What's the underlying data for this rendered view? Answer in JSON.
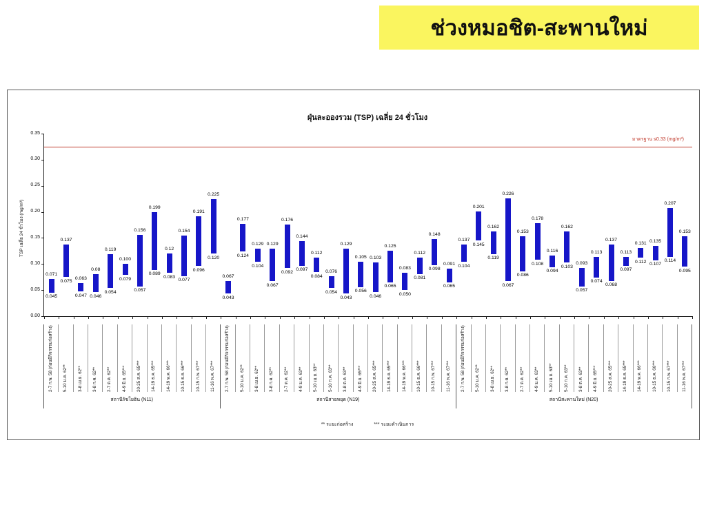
{
  "banner": {
    "text": "ช่วงหมอชิต-สะพานใหม่"
  },
  "colors": {
    "banner_bg": "#faf55f",
    "bar": "#1616c8",
    "standard_line": "#c0392b",
    "standard_label": "#c0392b"
  },
  "footnotes": {
    "construction": "** ระยะก่อสร้าง",
    "operation": "*** ระยะดำเนินการ"
  },
  "chart_data": {
    "type": "bar",
    "subtype": "floating-range-bars",
    "title": "ฝุ่นละอองรวม (TSP) เฉลี่ย 24 ชั่วโมง",
    "ylabel": "TSP เฉลี่ย 24 ชั่วโมง (mg/m³)",
    "ylim": [
      0,
      0.35
    ],
    "ytick_step": 0.05,
    "yticks": [
      "0.00",
      "0.05",
      "0.10",
      "0.15",
      "0.20",
      "0.25",
      "0.30",
      "0.35"
    ],
    "grid": false,
    "standard_line": {
      "value": 0.325,
      "label": "มาตรฐาน ≤0.33 (mg/m³)"
    },
    "groups": [
      {
        "name": "สถานีรัชโยธิน (N11)",
        "bars": [
          {
            "label": "2-7 ก.พ. 58 (ก่อนมีกิจกรรมก่อสร้าง)",
            "min": "0.045",
            "max": "0.071"
          },
          {
            "label": "5-10 ม.ค. 62**",
            "min": "0.075",
            "max": "0.137"
          },
          {
            "label": "3-8 เม.ย. 62**",
            "min": "0.047",
            "max": "0.063"
          },
          {
            "label": "3-8 ก.ค. 62**",
            "min": "0.046",
            "max": "0.08"
          },
          {
            "label": "2-7 ต.ค. 62**",
            "min": "0.054",
            "max": "0.119"
          },
          {
            "label": "4-9 มิ.ย. 65***",
            "min": "0.079",
            "max": "0.100"
          },
          {
            "label": "20-25 ส.ค. 65***",
            "min": "0.057",
            "max": "0.156"
          },
          {
            "label": "14-19 ธ.ค. 65***",
            "min": "0.089",
            "max": "0.199"
          },
          {
            "label": "14-19 พ.ค. 66***",
            "min": "0.083",
            "max": "0.12"
          },
          {
            "label": "10-15 ธ.ค. 66***",
            "min": "0.077",
            "max": "0.154"
          },
          {
            "label": "10-15 ก.พ. 67***",
            "min": "0.096",
            "max": "0.191"
          },
          {
            "label": "11-16 พ.ค. 67***",
            "min": "0.120",
            "max": "0.225"
          }
        ]
      },
      {
        "name": "สถานีสายหยุด (N19)",
        "bars": [
          {
            "label": "2-7 ก.พ. 58 (ก่อนมีกิจกรรมก่อสร้าง)",
            "min": "0.043",
            "max": "0.067"
          },
          {
            "label": "5-10 ม.ค. 62**",
            "min": "0.124",
            "max": "0.177"
          },
          {
            "label": "3-8 เม.ย. 62**",
            "min": "0.104",
            "max": "0.129"
          },
          {
            "label": "3-8 ก.ค. 62**",
            "min": "0.067",
            "max": "0.129"
          },
          {
            "label": "2-7 ต.ค. 62**",
            "min": "0.092",
            "max": "0.176"
          },
          {
            "label": "4-9 ม.ค. 63**",
            "min": "0.097",
            "max": "0.144"
          },
          {
            "label": "5-10 เม.ย. 63**",
            "min": "0.084",
            "max": "0.112"
          },
          {
            "label": "5-10 ก.ค. 63**",
            "min": "0.054",
            "max": "0.076"
          },
          {
            "label": "3-8 ต.ค. 63**",
            "min": "0.043",
            "max": "0.129"
          },
          {
            "label": "4-9 มิ.ย. 65***",
            "min": "0.056",
            "max": "0.105"
          },
          {
            "label": "20-25 ส.ค. 65***",
            "min": "0.046",
            "max": "0.103"
          },
          {
            "label": "14-19 ธ.ค. 65***",
            "min": "0.065",
            "max": "0.125"
          },
          {
            "label": "14-19 พ.ค. 66***",
            "min": "0.050",
            "max": "0.083"
          },
          {
            "label": "10-15 ธ.ค. 66***",
            "min": "0.081",
            "max": "0.112"
          },
          {
            "label": "10-15 ก.พ. 67***",
            "min": "0.098",
            "max": "0.148"
          },
          {
            "label": "11-16 พ.ค. 67***",
            "min": "0.065",
            "max": "0.091"
          }
        ]
      },
      {
        "name": "สถานีสะพานใหม่ (N20)",
        "bars": [
          {
            "label": "2-7 ก.พ. 58 (ก่อนมีกิจกรรมก่อสร้าง)",
            "min": "0.104",
            "max": "0.137"
          },
          {
            "label": "5-10 ม.ค. 62**",
            "min": "0.145",
            "max": "0.201"
          },
          {
            "label": "3-8 เม.ย. 62**",
            "min": "0.119",
            "max": "0.162"
          },
          {
            "label": "3-8 ก.ค. 62**",
            "min": "0.067",
            "max": "0.226"
          },
          {
            "label": "2-7 ต.ค. 62**",
            "min": "0.086",
            "max": "0.153"
          },
          {
            "label": "4-9 ม.ค. 63**",
            "min": "0.108",
            "max": "0.178"
          },
          {
            "label": "5-10 เม.ย. 63**",
            "min": "0.094",
            "max": "0.116"
          },
          {
            "label": "5-10 ก.ค. 63**",
            "min": "0.103",
            "max": "0.162"
          },
          {
            "label": "3-8 ต.ค. 63**",
            "min": "0.057",
            "max": "0.093"
          },
          {
            "label": "4-9 มิ.ย. 65***",
            "min": "0.074",
            "max": "0.113"
          },
          {
            "label": "20-25 ส.ค. 65***",
            "min": "0.068",
            "max": "0.137"
          },
          {
            "label": "14-19 ธ.ค. 65***",
            "min": "0.097",
            "max": "0.113"
          },
          {
            "label": "14-19 พ.ค. 66***",
            "min": "0.112",
            "max": "0.131"
          },
          {
            "label": "10-15 ธ.ค. 66***",
            "min": "0.107",
            "max": "0.135"
          },
          {
            "label": "10-15 ก.พ. 67***",
            "min": "0.114",
            "max": "0.207"
          },
          {
            "label": "11-16 พ.ค. 67***",
            "min": "0.095",
            "max": "0.153"
          }
        ]
      }
    ]
  }
}
